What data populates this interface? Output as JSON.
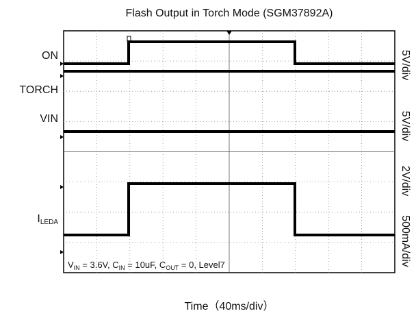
{
  "title": "Flash Output in Torch Mode (SGM37892A)",
  "channels": [
    {
      "label": "ON",
      "scale": "5V/div"
    },
    {
      "label": "TORCH",
      "scale": "5V/div"
    },
    {
      "label": "VIN",
      "scale": "2V/div"
    },
    {
      "label": "I",
      "label_sub": "LEDA",
      "scale": "500mA/div"
    }
  ],
  "note": [
    "V",
    "IN",
    " = 3.6V, C",
    "IN",
    " = 10uF, C",
    "OUT",
    " = 0, Level7"
  ],
  "xlabel": "Time（40ms/div）"
}
